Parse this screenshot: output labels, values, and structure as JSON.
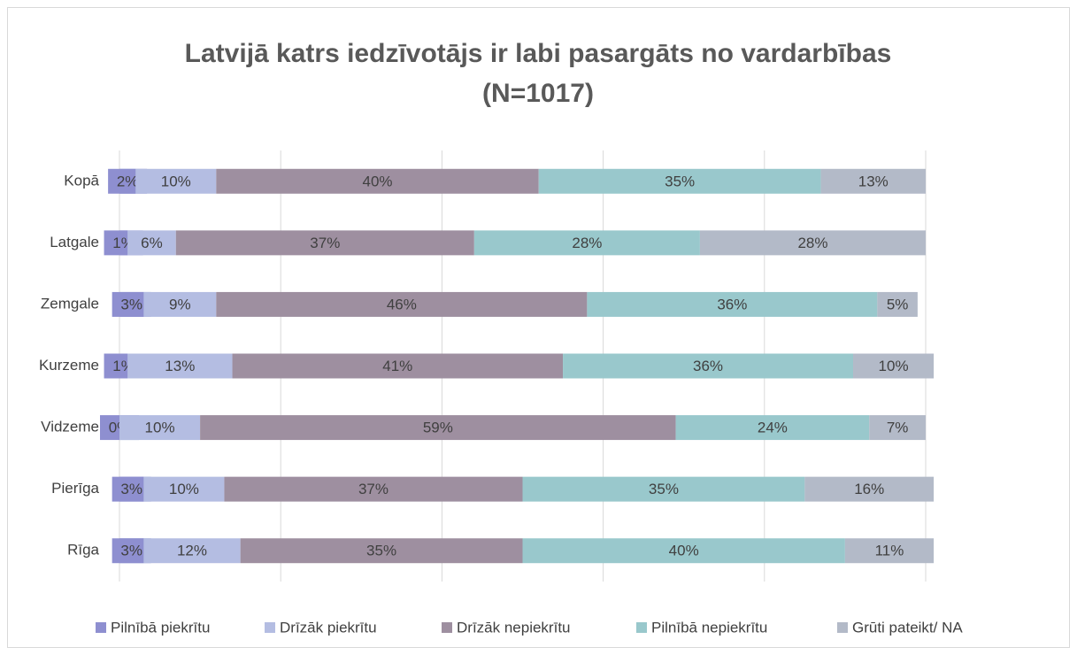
{
  "chart_data": {
    "type": "stacked_bar_horizontal",
    "title": "Latvijā katrs iedzīvotājs ir labi pasargāts no vardarbības (N=1017)",
    "categories": [
      "Kopā",
      "Latgale",
      "Zemgale",
      "Kurzeme",
      "Vidzeme",
      "Pierīga",
      "Rīga"
    ],
    "series": [
      {
        "name": "Pilnībā piekrītu",
        "color": "#8e8fd0",
        "values": [
          2,
          1,
          3,
          1,
          0,
          3,
          3
        ]
      },
      {
        "name": "Drīzāk piekrītu",
        "color": "#b4bde2",
        "values": [
          10,
          6,
          9,
          13,
          10,
          10,
          12
        ]
      },
      {
        "name": "Drīzāk nepiekrītu",
        "color": "#9e8fa0",
        "values": [
          40,
          37,
          46,
          41,
          59,
          37,
          35
        ]
      },
      {
        "name": "Pilnībā nepiekrītu",
        "color": "#99c8cc",
        "values": [
          35,
          28,
          36,
          36,
          24,
          35,
          40
        ]
      },
      {
        "name": "Grūti pateikt/ NA",
        "color": "#b3bac8",
        "values": [
          13,
          28,
          5,
          10,
          7,
          16,
          11
        ]
      }
    ],
    "value_labels": [
      [
        "2%",
        "1%",
        "3%",
        "1%",
        "0%",
        "3%",
        "3%"
      ],
      [
        "10%",
        "6%",
        "9%",
        "13%",
        "10%",
        "10%",
        "12%"
      ],
      [
        "40%",
        "37%",
        "46%",
        "41%",
        "59%",
        "37%",
        "35%"
      ],
      [
        "35%",
        "28%",
        "36%",
        "36%",
        "24%",
        "35%",
        "40%"
      ],
      [
        "13%",
        "28%",
        "5%",
        "10%",
        "7%",
        "16%",
        "11%"
      ]
    ],
    "xlim": [
      0,
      100
    ],
    "xticks": [
      0,
      20,
      40,
      60,
      80,
      100
    ],
    "grid": true,
    "legend": "bottom"
  }
}
